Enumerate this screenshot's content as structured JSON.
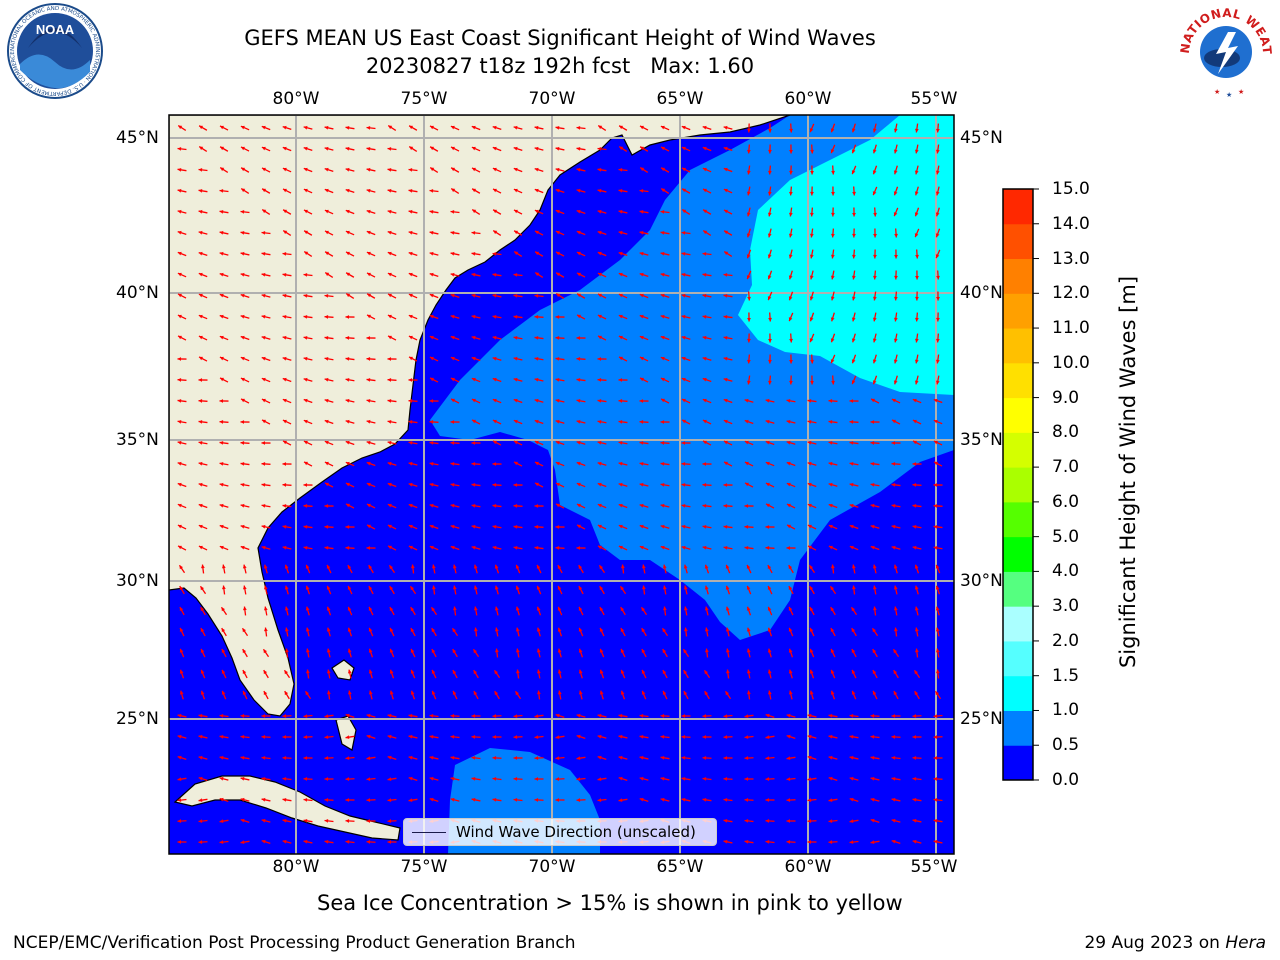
{
  "title": {
    "line1": "GEFS MEAN US East Coast Significant Height of Wind Waves",
    "line2": "20230827 t18z 192h fcst   Max: 1.60"
  },
  "map": {
    "lon_ticks": [
      "80°W",
      "75°W",
      "70°W",
      "65°W",
      "60°W",
      "55°W"
    ],
    "lat_ticks": [
      "45°N",
      "40°N",
      "35°N",
      "30°N",
      "25°N"
    ],
    "colors": {
      "land": "#efeedb",
      "coast": "#000000",
      "grid": "#b0b0b0",
      "arrow": "#ff0000",
      "wave_0_0_5": "#0000ff",
      "wave_0_5_1_0": "#0080ff",
      "wave_1_0_1_5": "#00ffff"
    },
    "legend_label": "Wind Wave Direction (unscaled)",
    "max_value": 1.6
  },
  "colorbar": {
    "label": "Significant Height of Wind Waves [m]",
    "ticks": [
      "0.0",
      "0.5",
      "1.0",
      "1.5",
      "2.0",
      "3.0",
      "4.0",
      "5.0",
      "6.0",
      "7.0",
      "8.0",
      "9.0",
      "10.0",
      "11.0",
      "12.0",
      "13.0",
      "14.0",
      "15.0"
    ],
    "colors": [
      "#0000ff",
      "#0080ff",
      "#00ffff",
      "#55ffff",
      "#aaffff",
      "#55ff80",
      "#00ff00",
      "#55ff00",
      "#aaff00",
      "#d4ff00",
      "#ffff00",
      "#ffe000",
      "#ffc000",
      "#ffa000",
      "#ff8000",
      "#ff5000",
      "#ff2800",
      "#ff0000"
    ]
  },
  "logos": {
    "left": "noaa-logo",
    "left_text": "NOAA",
    "right": "nws-logo",
    "right_text": "NATIONAL WEATHER SERVICE"
  },
  "subnote": "Sea Ice Concentration > 15% is shown in pink to yellow",
  "footer": {
    "left": "NCEP/EMC/Verification Post Processing Product Generation Branch",
    "right_date": "29 Aug 2023 on ",
    "right_host": "Hera"
  }
}
